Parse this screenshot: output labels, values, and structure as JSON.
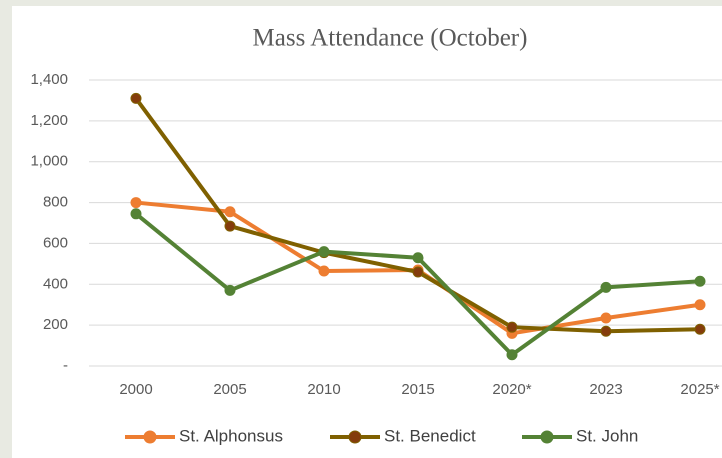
{
  "chart_data": {
    "type": "line",
    "title": "Mass Attendance (October)",
    "categories": [
      "2000",
      "2005",
      "2010",
      "2015",
      "2020*",
      "2023",
      "2025*"
    ],
    "series": [
      {
        "name": "St. Alphonsus",
        "color": "#ed7d31",
        "marker_color": "#ed7d31",
        "values": [
          800,
          755,
          465,
          470,
          160,
          235,
          300
        ]
      },
      {
        "name": "St. Benedict",
        "color": "#7f6000",
        "marker_color": "#843c0c",
        "values": [
          1310,
          685,
          555,
          460,
          190,
          170,
          180
        ]
      },
      {
        "name": "St. John",
        "color": "#548235",
        "marker_color": "#548235",
        "values": [
          745,
          370,
          560,
          530,
          55,
          385,
          415
        ]
      }
    ],
    "ylim": [
      0,
      1400
    ],
    "yticks": [
      {
        "value": 0,
        "label": "-"
      },
      200,
      400,
      600,
      800,
      {
        "value": 1000,
        "label": "1,000"
      },
      {
        "value": 1200,
        "label": "1,200"
      },
      {
        "value": 1400,
        "label": "1,400"
      }
    ],
    "grid": true,
    "legend": "bottom"
  }
}
